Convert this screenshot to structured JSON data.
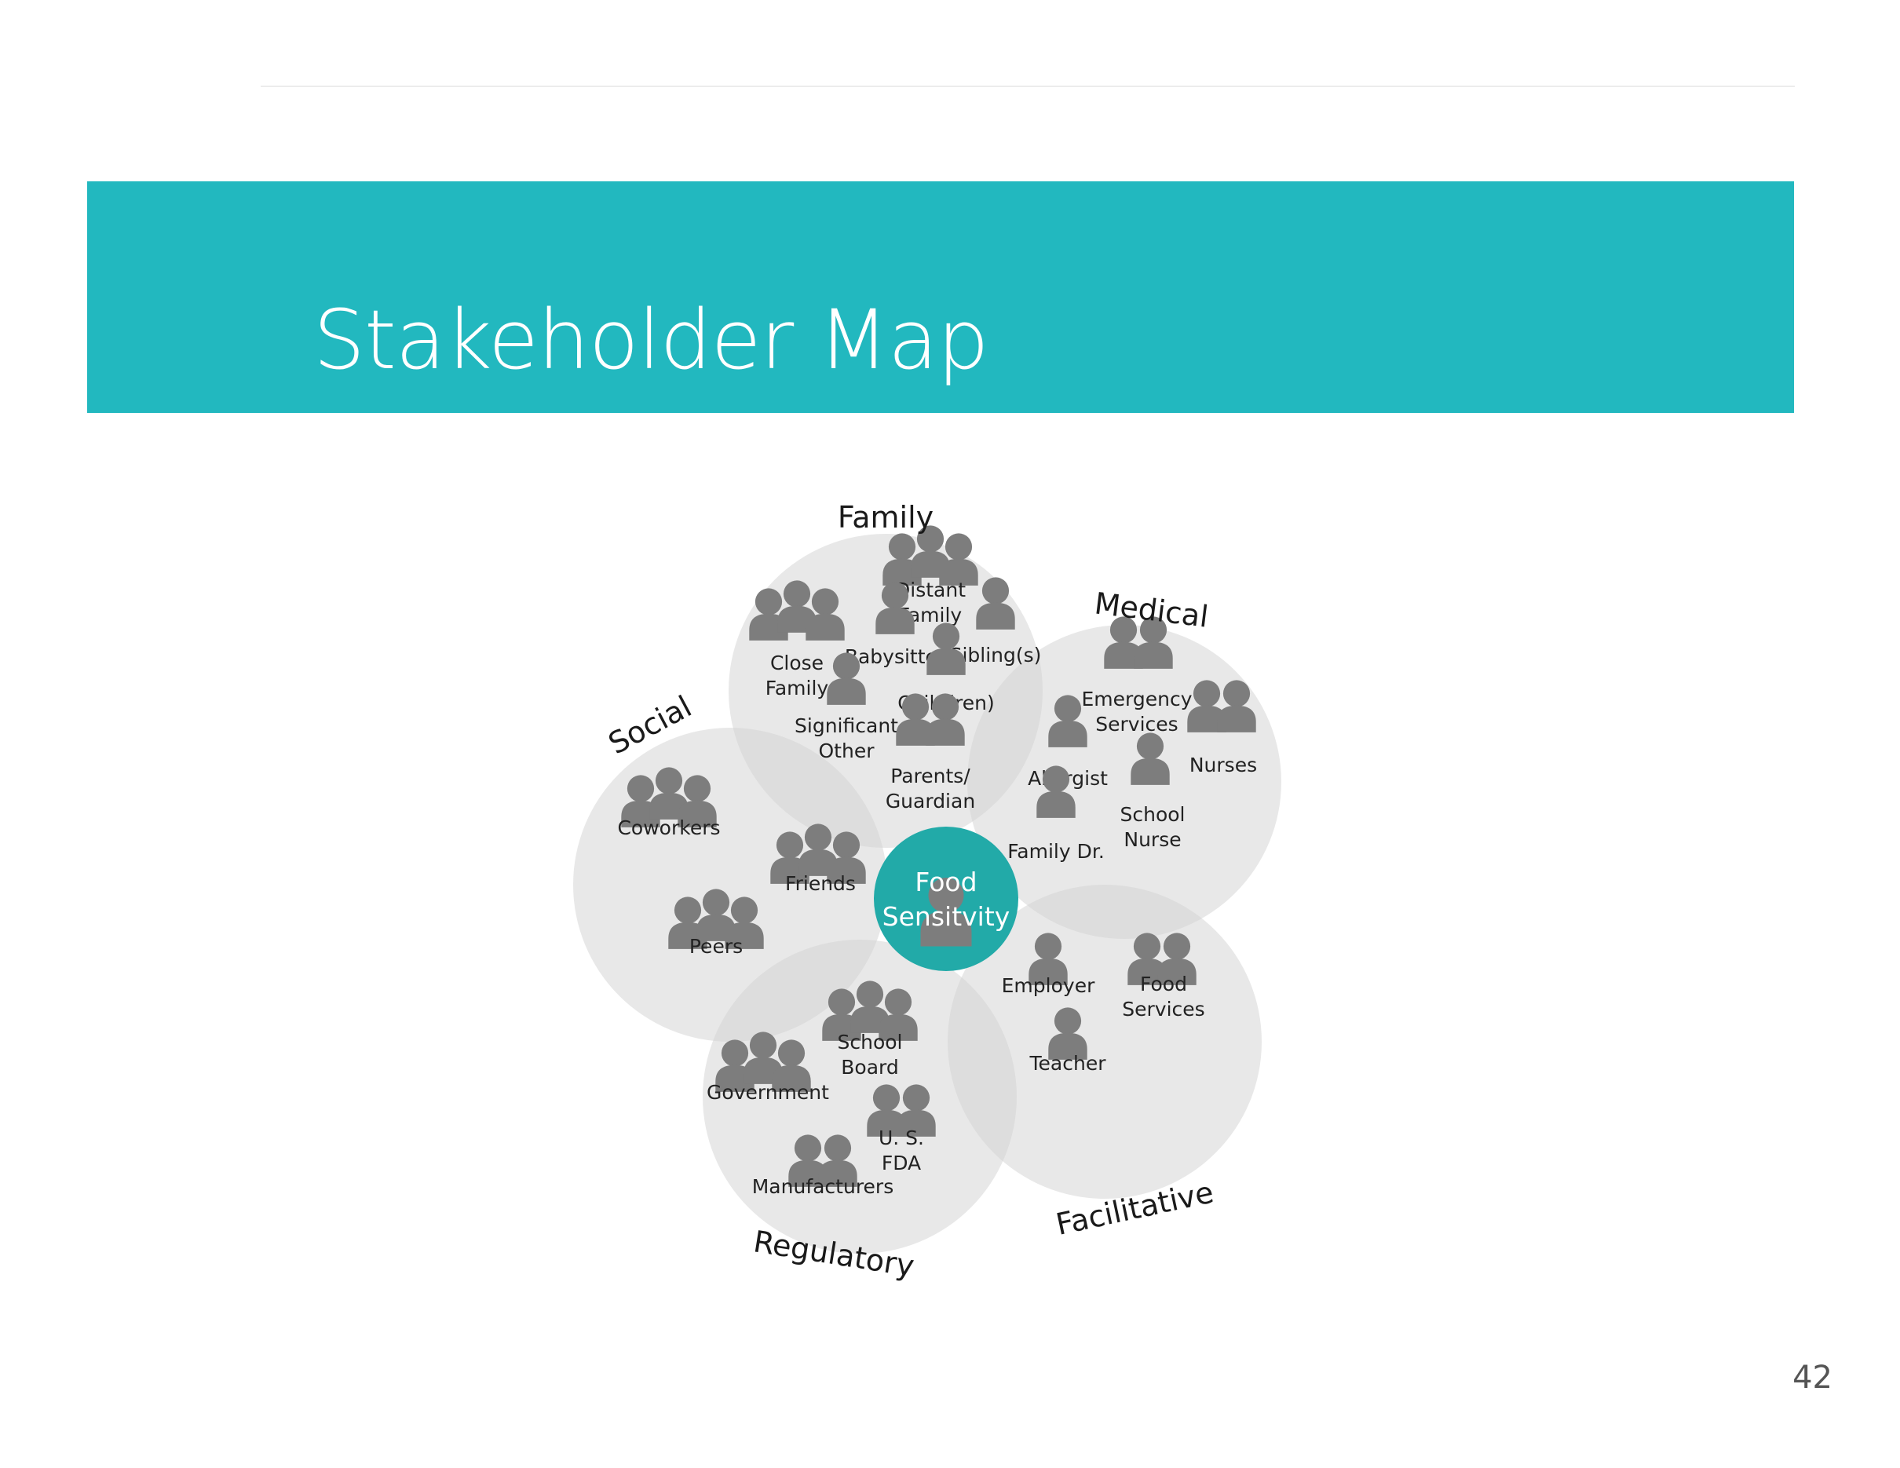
{
  "slide": {
    "title": "Stakeholder Map",
    "page_number": "42"
  },
  "colors": {
    "banner": "#22b8bf",
    "center": "#22aaa8",
    "circle": "#d2d2d2",
    "person_icon": "#7d7d7d"
  },
  "diagram": {
    "center": [
      "Food",
      "Sensitvity"
    ],
    "categories": [
      {
        "id": "family",
        "label": "Family",
        "stakeholders": [
          {
            "label": [
              "Distant",
              "Family"
            ],
            "icon": "group-icon"
          },
          {
            "label": [
              "Close",
              "Family"
            ],
            "icon": "group-icon"
          },
          {
            "label": [
              "Babysitter"
            ],
            "icon": "person-icon"
          },
          {
            "label": [
              "Sibling(s)"
            ],
            "icon": "person-icon"
          },
          {
            "label": [
              "Child(ren)"
            ],
            "icon": "person-icon"
          },
          {
            "label": [
              "Significant",
              "Other"
            ],
            "icon": "person-icon"
          },
          {
            "label": [
              "Parents/",
              "Guardian"
            ],
            "icon": "pair-icon"
          }
        ]
      },
      {
        "id": "medical",
        "label": "Medical",
        "stakeholders": [
          {
            "label": [
              "Emergency",
              "Services"
            ],
            "icon": "pair-icon"
          },
          {
            "label": [
              "Nurses"
            ],
            "icon": "pair-icon"
          },
          {
            "label": [
              "Allergist"
            ],
            "icon": "person-icon"
          },
          {
            "label": [
              "School",
              "Nurse"
            ],
            "icon": "person-icon"
          },
          {
            "label": [
              "Family Dr."
            ],
            "icon": "person-icon"
          }
        ]
      },
      {
        "id": "social",
        "label": "Social",
        "stakeholders": [
          {
            "label": [
              "Coworkers"
            ],
            "icon": "group-icon"
          },
          {
            "label": [
              "Friends"
            ],
            "icon": "group-icon"
          },
          {
            "label": [
              "Peers"
            ],
            "icon": "group-icon"
          }
        ]
      },
      {
        "id": "regulatory",
        "label": "Regulatory",
        "stakeholders": [
          {
            "label": [
              "School",
              "Board"
            ],
            "icon": "group-icon"
          },
          {
            "label": [
              "Government"
            ],
            "icon": "group-icon"
          },
          {
            "label": [
              "U. S.",
              "FDA"
            ],
            "icon": "pair-icon"
          },
          {
            "label": [
              "Manufacturers"
            ],
            "icon": "pair-icon"
          }
        ]
      },
      {
        "id": "facilitative",
        "label": "Facilitative",
        "stakeholders": [
          {
            "label": [
              "Employer"
            ],
            "icon": "person-icon"
          },
          {
            "label": [
              "Food",
              "Services"
            ],
            "icon": "pair-icon"
          },
          {
            "label": [
              "Teacher"
            ],
            "icon": "person-icon"
          }
        ]
      }
    ]
  }
}
